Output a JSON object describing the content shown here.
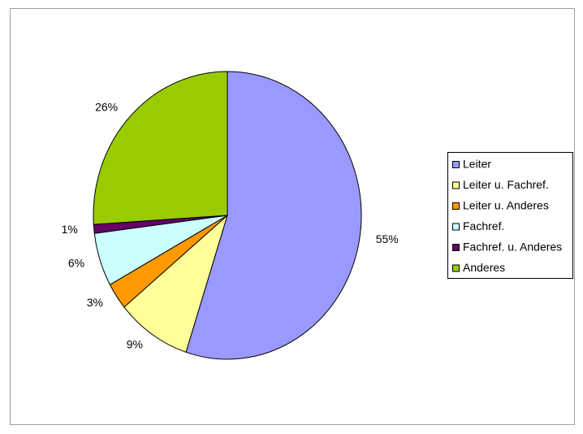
{
  "chart_data": {
    "type": "pie",
    "categories": [
      "Leiter",
      "Leiter u. Fachref.",
      "Leiter u. Anderes",
      "Fachref.",
      "Fachref. u. Anderes",
      "Anderes"
    ],
    "values": [
      55,
      9,
      3,
      6,
      1,
      26
    ],
    "value_labels": [
      "55%",
      "9%",
      "3%",
      "6%",
      "1%",
      "26%"
    ],
    "colors": [
      "#9999ff",
      "#ffff99",
      "#ff9900",
      "#ccffff",
      "#660066",
      "#99cc00"
    ],
    "legend": "right"
  }
}
